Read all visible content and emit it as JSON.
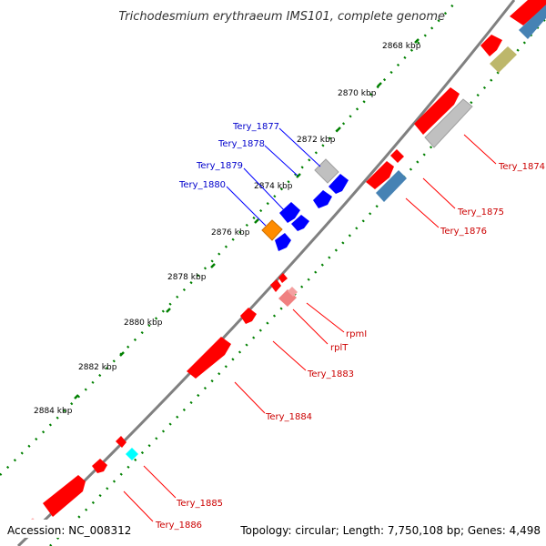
{
  "title": "Trichodesmium erythraeum IMS101, complete genome",
  "footer": {
    "accession": "Accession: NC_008312",
    "stats": "Topology: circular; Length: 7,750,108 bp; Genes: 4,498"
  },
  "ticks": [
    "2868 kbp",
    "2870 kbp",
    "2872 kbp",
    "2874 kbp",
    "2876 kbp",
    "2878 kbp",
    "2880 kbp",
    "2882 kbp",
    "2884 kbp"
  ],
  "gene_labels_blue": [
    "Tery_1877",
    "Tery_1878",
    "Tery_1879",
    "Tery_1880"
  ],
  "gene_labels_red": [
    "Tery_1874",
    "Tery_1875",
    "Tery_1876",
    "rpmI",
    "rplT",
    "Tery_1883",
    "Tery_1884",
    "Tery_1885",
    "Tery_1886"
  ],
  "colors": {
    "backbone": "#808080",
    "tick_green": "#008000",
    "gene_red": "#ff0000",
    "gene_gray": "#c0c0c0",
    "gene_steel": "#4682b4",
    "gene_khaki": "#bdb76b",
    "gene_blue": "#0000ff",
    "gene_orange": "#ff8c00",
    "gene_pink": "#f08080",
    "gene_cyan": "#00ffff",
    "label_red": "#cc0000",
    "label_blue": "#0000cc"
  }
}
